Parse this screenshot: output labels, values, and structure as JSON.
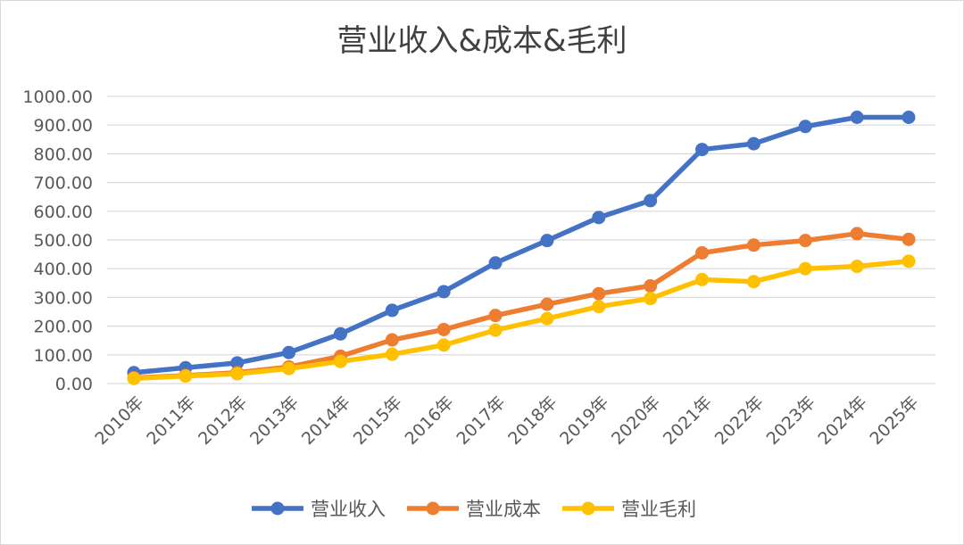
{
  "chart_data": {
    "type": "line",
    "title": "营业收入&成本&毛利",
    "categories": [
      "2010年",
      "2011年",
      "2012年",
      "2013年",
      "2014年",
      "2015年",
      "2016年",
      "2017年",
      "2018年",
      "2019年",
      "2020年",
      "2021年",
      "2022年",
      "2023年",
      "2024年",
      "2025年"
    ],
    "y_ticks": [
      "0.00",
      "100.00",
      "200.00",
      "300.00",
      "400.00",
      "500.00",
      "600.00",
      "700.00",
      "800.00",
      "900.00",
      "1000.00"
    ],
    "ylim": [
      0,
      1000
    ],
    "grid": true,
    "legend_position": "bottom",
    "series": [
      {
        "name": "营业收入",
        "color": "#4472C4",
        "values": [
          38,
          55,
          72,
          108,
          173,
          255,
          320,
          420,
          498,
          578,
          637,
          815,
          835,
          895,
          927,
          927
        ]
      },
      {
        "name": "营业成本",
        "color": "#ED7D31",
        "values": [
          20,
          28,
          38,
          58,
          95,
          152,
          188,
          237,
          276,
          313,
          340,
          455,
          482,
          498,
          522,
          502
        ]
      },
      {
        "name": "营业毛利",
        "color": "#FFC000",
        "values": [
          18,
          26,
          34,
          52,
          77,
          102,
          134,
          186,
          226,
          268,
          296,
          362,
          355,
          400,
          408,
          426
        ]
      }
    ]
  }
}
